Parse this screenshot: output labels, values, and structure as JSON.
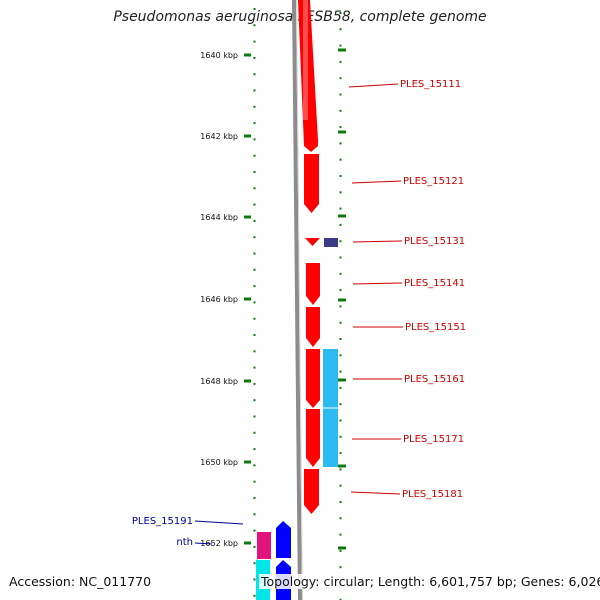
{
  "title": "Pseudomonas aeruginosa LESB58, complete genome",
  "footer": {
    "accession": "Accession: NC_011770",
    "topology": "Topology: circular; Length: 6,601,757 bp; Genes: 6,026"
  },
  "colors": {
    "forward_cds": "#ff0000",
    "reverse_cds": "#0000ff",
    "tick": "#0d7a0d",
    "backbone": "#8c8c8c",
    "label_forward": "#cc0000",
    "label_reverse": "#000099",
    "other_feature_light": "#2bbbf0",
    "other_feature_dark": "#3d3a8a",
    "other_feature_magenta": "#e0147a",
    "other_feature_cyan": "#00e6e6"
  },
  "ticks": [
    {
      "label": "1640 kbp"
    },
    {
      "label": "1642 kbp"
    },
    {
      "label": "1644 kbp"
    },
    {
      "label": "1646 kbp"
    },
    {
      "label": "1648 kbp"
    },
    {
      "label": "1650 kbp"
    },
    {
      "label": "1652 kbp"
    }
  ],
  "gene_labels": [
    {
      "text": "PLES_15111",
      "strand": "forward"
    },
    {
      "text": "PLES_15121",
      "strand": "forward"
    },
    {
      "text": "PLES_15131",
      "strand": "forward"
    },
    {
      "text": "PLES_15141",
      "strand": "forward"
    },
    {
      "text": "PLES_15151",
      "strand": "forward"
    },
    {
      "text": "PLES_15161",
      "strand": "forward"
    },
    {
      "text": "PLES_15171",
      "strand": "forward"
    },
    {
      "text": "PLES_15181",
      "strand": "forward"
    },
    {
      "text": "PLES_15191",
      "strand": "reverse"
    },
    {
      "text": "nth",
      "strand": "reverse"
    }
  ]
}
